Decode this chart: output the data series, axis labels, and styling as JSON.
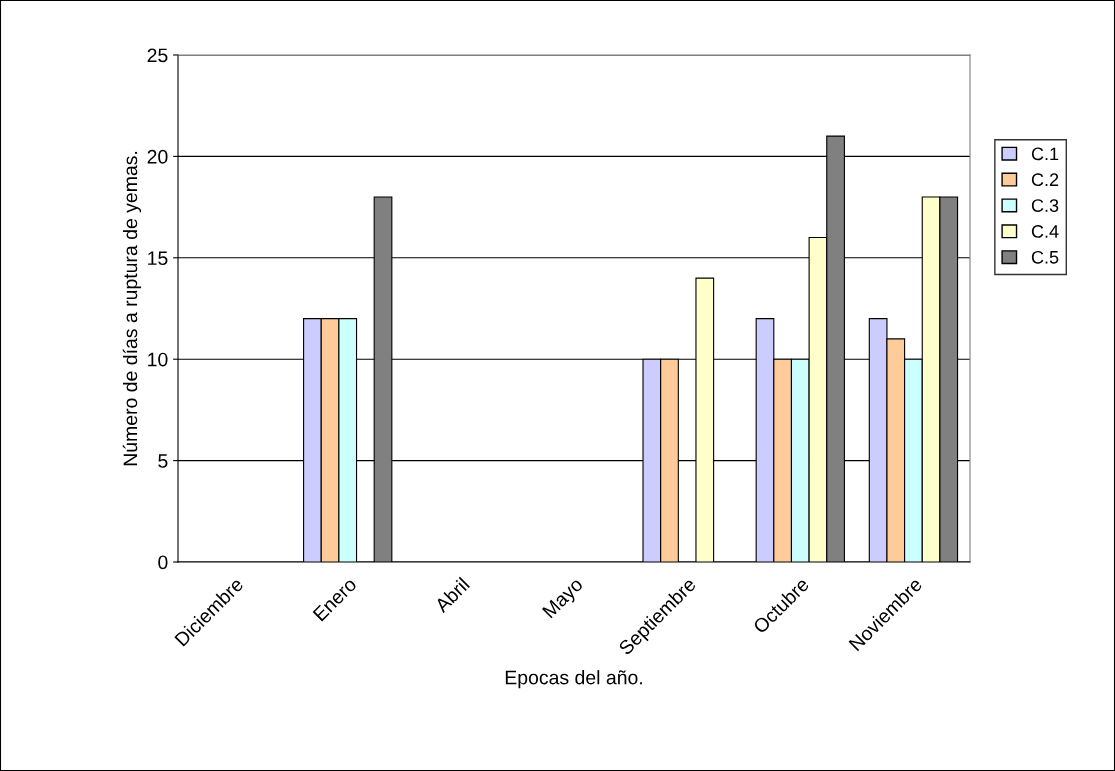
{
  "chart_data": {
    "type": "bar",
    "xlabel": "Epocas del año.",
    "ylabel": "Número de días a ruptura de yemas.",
    "categories": [
      "Diciembre",
      "Enero",
      "Abril",
      "Mayo",
      "Septiembre",
      "Octubre",
      "Noviembre"
    ],
    "series": [
      {
        "name": "C.1",
        "color": "#ccccff",
        "values": [
          null,
          12,
          null,
          null,
          10,
          12,
          12
        ]
      },
      {
        "name": "C.2",
        "color": "#ffcc99",
        "values": [
          null,
          12,
          null,
          null,
          10,
          10,
          11
        ]
      },
      {
        "name": "C.3",
        "color": "#ccffff",
        "values": [
          null,
          12,
          null,
          null,
          null,
          10,
          10
        ]
      },
      {
        "name": "C.4",
        "color": "#ffffcc",
        "values": [
          null,
          null,
          null,
          null,
          14,
          16,
          18
        ]
      },
      {
        "name": "C.5",
        "color": "#808080",
        "values": [
          null,
          18,
          null,
          null,
          null,
          21,
          18
        ]
      }
    ],
    "ylim": [
      0,
      25
    ],
    "yticks": [
      0,
      5,
      10,
      15,
      20,
      25
    ],
    "grid": "y",
    "legend": "right"
  }
}
